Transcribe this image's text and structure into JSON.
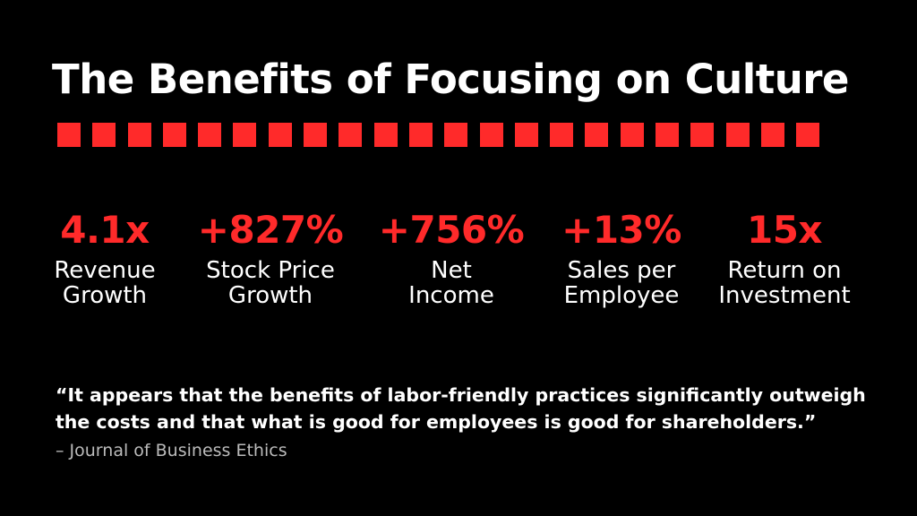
{
  "title": "The Benefits of Focusing on Culture",
  "accent_color": "#ff2a2a",
  "divider_squares": 22,
  "stats": [
    {
      "value": "4.1x",
      "label1": "Revenue",
      "label2": "Growth"
    },
    {
      "value": "+827%",
      "label1": "Stock Price",
      "label2": "Growth"
    },
    {
      "value": "+756%",
      "label1": "Net",
      "label2": "Income"
    },
    {
      "value": "+13%",
      "label1": "Sales per",
      "label2": "Employee"
    },
    {
      "value": "15x",
      "label1": "Return on",
      "label2": "Investment"
    }
  ],
  "quote": {
    "line1": "“It appears that the benefits of labor-friendly practices significantly outweigh",
    "line2": "the costs and that what is good for employees is good for shareholders.”",
    "source": "– Journal of Business Ethics"
  }
}
